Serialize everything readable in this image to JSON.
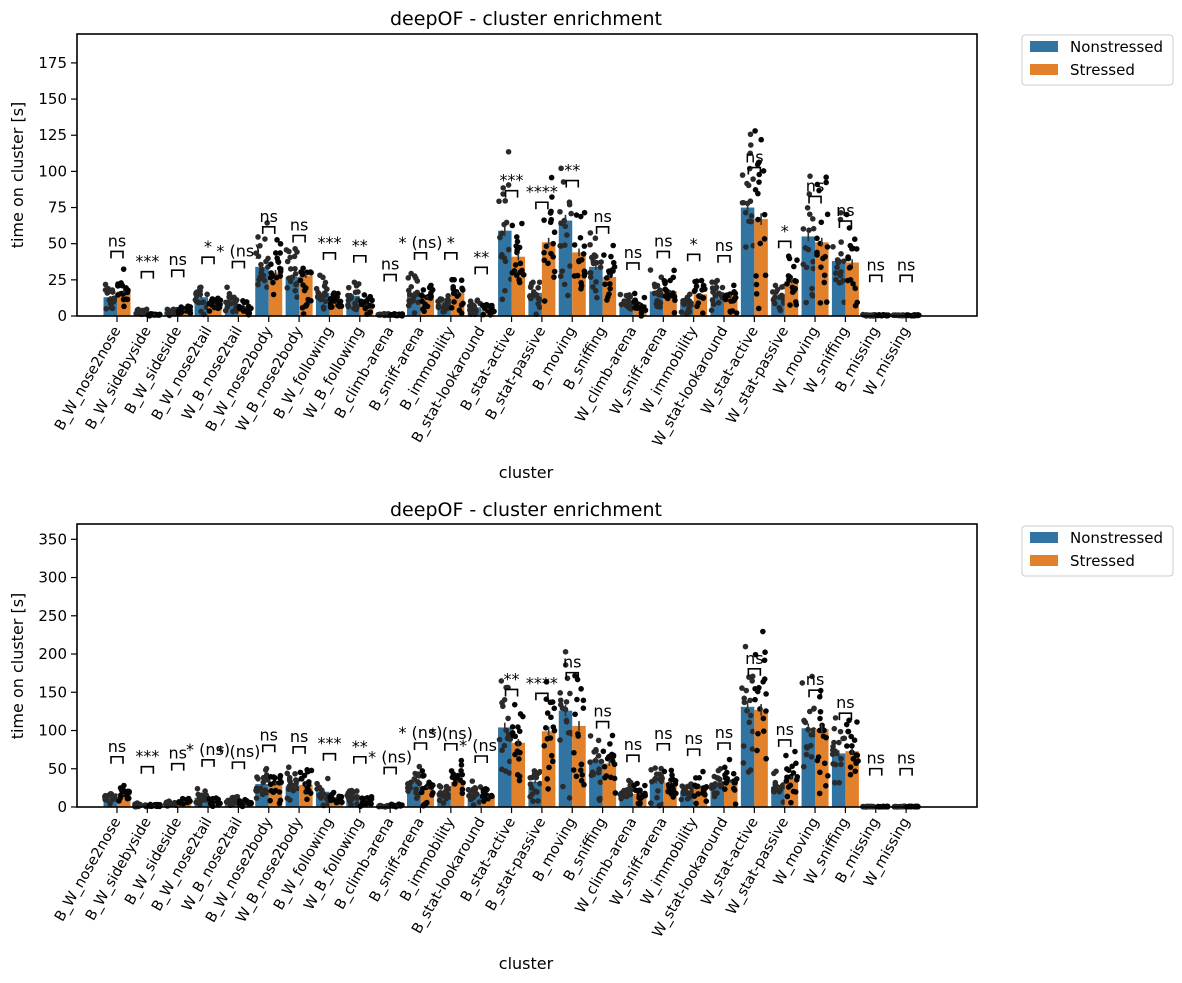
{
  "colors": {
    "Nonstressed": "#3274a1",
    "Stressed": "#e1812c",
    "dots": "#111111"
  },
  "chart_data": [
    {
      "type": "bar",
      "title": "deepOF - cluster enrichment",
      "xlabel": "cluster",
      "ylabel": "time on cluster [s]",
      "ylim": [
        0,
        195
      ],
      "yticks": [
        0,
        25,
        50,
        75,
        100,
        125,
        150,
        175
      ],
      "legend": {
        "placement": "outside-top-right",
        "entries": [
          "Nonstressed",
          "Stressed"
        ]
      },
      "categories": [
        "B_W_nose2nose",
        "B_W_sidebyside",
        "B_W_sideside",
        "B_W_nose2tail",
        "W_B_nose2tail",
        "B_W_nose2body",
        "W_B_nose2body",
        "B_W_following",
        "W_B_following",
        "B_climb-arena",
        "B_sniff-arena",
        "B_immobility",
        "B_stat-lookaround",
        "B_stat-active",
        "B_stat-passive",
        "B_moving",
        "B_sniffing",
        "W_climb-arena",
        "W_sniff-arena",
        "W_immobility",
        "W_stat-lookaround",
        "W_stat-active",
        "W_stat-passive",
        "W_moving",
        "W_sniffing",
        "B_missing",
        "W_missing"
      ],
      "series": [
        {
          "name": "Nonstressed",
          "values": [
            13,
            3,
            3,
            13,
            10,
            34,
            27,
            16,
            14,
            1,
            16,
            9,
            6,
            59,
            16,
            66,
            34,
            9,
            17,
            8,
            13,
            75,
            13,
            55,
            38,
            0.5,
            0.5
          ]
        },
        {
          "name": "Stressed",
          "values": [
            17,
            1,
            4,
            8,
            6,
            30,
            28,
            9,
            8,
            1,
            13,
            16,
            5,
            41,
            51,
            44,
            27,
            8,
            17,
            15,
            14,
            67,
            24,
            51,
            37,
            0.5,
            0.5
          ]
        }
      ],
      "annotations": [
        "ns",
        "***",
        "ns",
        "*",
        "* (ns)",
        "ns",
        "ns",
        "***",
        "**",
        "ns",
        "* (ns)",
        "*",
        "**",
        "***",
        "****",
        "**",
        "ns",
        "ns",
        "ns",
        "*",
        "ns",
        "ns",
        "*",
        "ns",
        "ns",
        "ns",
        "ns"
      ]
    },
    {
      "type": "bar",
      "title": "deepOF - cluster enrichment",
      "xlabel": "cluster",
      "ylabel": "time on cluster [s]",
      "ylim": [
        0,
        370
      ],
      "yticks": [
        0,
        50,
        100,
        150,
        200,
        250,
        300,
        350
      ],
      "legend": {
        "placement": "outside-top-right",
        "entries": [
          "Nonstressed",
          "Stressed"
        ]
      },
      "categories": [
        "B_W_nose2nose",
        "B_W_sidebyside",
        "B_W_sideside",
        "B_W_nose2tail",
        "W_B_nose2tail",
        "B_W_nose2body",
        "W_B_nose2body",
        "B_W_following",
        "W_B_following",
        "B_climb-arena",
        "B_sniff-arena",
        "B_immobility",
        "B_stat-lookaround",
        "B_stat-active",
        "B_stat-passive",
        "B_moving",
        "B_sniffing",
        "W_climb-arena",
        "W_sniff-arena",
        "W_immobility",
        "W_stat-lookaround",
        "W_stat-active",
        "W_stat-passive",
        "W_moving",
        "W_sniffing",
        "B_missing",
        "W_missing"
      ],
      "series": [
        {
          "name": "Nonstressed",
          "values": [
            13,
            3,
            5,
            12,
            9,
            30,
            27,
            20,
            16,
            1,
            34,
            19,
            17,
            104,
            33,
            126,
            62,
            18,
            33,
            20,
            30,
            131,
            26,
            103,
            70,
            0.5,
            0.5
          ]
        },
        {
          "name": "Stressed",
          "values": [
            16,
            2,
            7,
            8,
            5,
            31,
            29,
            12,
            9,
            2,
            26,
            33,
            14,
            84,
            99,
            106,
            57,
            17,
            32,
            26,
            34,
            127,
            38,
            102,
            73,
            0.5,
            0.5
          ]
        }
      ],
      "annotations": [
        "ns",
        "***",
        "ns",
        "* (ns)",
        "* (ns)",
        "ns",
        "ns",
        "***",
        "**",
        "* (ns)",
        "* (ns)",
        "* (ns)",
        "* (ns)",
        "**",
        "****",
        "ns",
        "ns",
        "ns",
        "ns",
        "ns",
        "ns",
        "ns",
        "ns",
        "ns",
        "ns",
        "ns",
        "ns"
      ]
    }
  ]
}
